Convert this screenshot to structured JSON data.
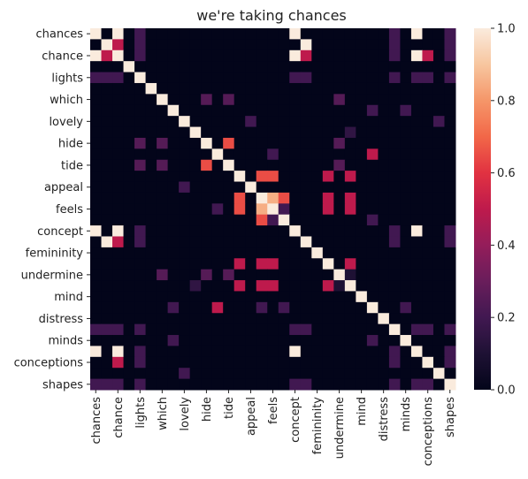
{
  "chart_data": {
    "type": "heatmap",
    "title": "we're taking chances",
    "xlabel": "",
    "ylabel": "",
    "labels": [
      "chances",
      "",
      "chance",
      "",
      "lights",
      "",
      "which",
      "",
      "lovely",
      "",
      "hide",
      "",
      "tide",
      "",
      "appeal",
      "",
      "feels",
      "",
      "concept",
      "",
      "femininity",
      "",
      "undermine",
      "",
      "mind",
      "",
      "distress",
      "",
      "minds",
      "",
      "conceptions",
      "",
      "shapes"
    ],
    "x_ticks": [
      "chances",
      "chance",
      "lights",
      "which",
      "lovely",
      "hide",
      "tide",
      "appeal",
      "feels",
      "concept",
      "femininity",
      "undermine",
      "mind",
      "distress",
      "minds",
      "conceptions",
      "shapes"
    ],
    "y_ticks": [
      "chances",
      "chance",
      "lights",
      "which",
      "lovely",
      "hide",
      "tide",
      "appeal",
      "feels",
      "concept",
      "femininity",
      "undermine",
      "mind",
      "distress",
      "minds",
      "conceptions",
      "shapes"
    ],
    "values": [
      [
        1,
        0,
        1,
        0,
        0.2,
        0,
        0,
        0,
        0,
        0,
        0,
        0,
        0,
        0,
        0,
        0,
        0,
        0,
        1,
        0,
        0,
        0,
        0,
        0,
        0,
        0,
        0,
        0.2,
        0,
        1,
        0,
        0,
        0.2
      ],
      [
        0,
        1,
        0.5,
        0,
        0.2,
        0,
        0,
        0,
        0,
        0,
        0,
        0,
        0,
        0,
        0,
        0,
        0,
        0,
        0,
        1,
        0,
        0,
        0,
        0,
        0,
        0,
        0,
        0.2,
        0,
        0,
        0,
        0,
        0.2
      ],
      [
        1,
        0.5,
        1,
        0,
        0.2,
        0,
        0,
        0,
        0,
        0,
        0,
        0,
        0,
        0,
        0,
        0,
        0,
        0,
        1,
        0.5,
        0,
        0,
        0,
        0,
        0,
        0,
        0,
        0.2,
        0,
        1,
        0.5,
        0,
        0.2
      ],
      [
        0,
        0,
        0,
        1,
        0,
        0,
        0,
        0,
        0,
        0,
        0,
        0,
        0,
        0,
        0,
        0,
        0,
        0,
        0,
        0,
        0,
        0,
        0,
        0,
        0,
        0,
        0,
        0,
        0,
        0,
        0,
        0,
        0
      ],
      [
        0.2,
        0.2,
        0.2,
        0,
        1,
        0,
        0,
        0,
        0,
        0,
        0,
        0,
        0,
        0,
        0,
        0,
        0,
        0,
        0.2,
        0.2,
        0,
        0,
        0,
        0,
        0,
        0,
        0,
        0.2,
        0,
        0.2,
        0.2,
        0,
        0.2
      ],
      [
        0,
        0,
        0,
        0,
        0,
        1,
        0,
        0,
        0,
        0,
        0,
        0,
        0,
        0,
        0,
        0,
        0,
        0,
        0,
        0,
        0,
        0,
        0,
        0,
        0,
        0,
        0,
        0,
        0,
        0,
        0,
        0,
        0
      ],
      [
        0,
        0,
        0,
        0,
        0,
        0,
        1,
        0,
        0,
        0,
        0.25,
        0,
        0.25,
        0,
        0,
        0,
        0,
        0,
        0,
        0,
        0,
        0,
        0.25,
        0,
        0,
        0,
        0,
        0,
        0,
        0,
        0,
        0,
        0
      ],
      [
        0,
        0,
        0,
        0,
        0,
        0,
        0,
        1,
        0,
        0,
        0,
        0,
        0,
        0,
        0,
        0,
        0,
        0,
        0,
        0,
        0,
        0,
        0,
        0,
        0,
        0.2,
        0,
        0,
        0.2,
        0,
        0,
        0,
        0
      ],
      [
        0,
        0,
        0,
        0,
        0,
        0,
        0,
        0,
        1,
        0,
        0,
        0,
        0,
        0,
        0.2,
        0,
        0,
        0,
        0,
        0,
        0,
        0,
        0,
        0,
        0,
        0,
        0,
        0,
        0,
        0,
        0,
        0.2,
        0
      ],
      [
        0,
        0,
        0,
        0,
        0,
        0,
        0,
        0,
        0,
        1,
        0,
        0,
        0,
        0,
        0,
        0,
        0,
        0,
        0,
        0,
        0,
        0,
        0,
        0.15,
        0,
        0,
        0,
        0,
        0,
        0,
        0,
        0,
        0
      ],
      [
        0,
        0,
        0,
        0,
        0.25,
        0,
        0.25,
        0,
        0,
        0,
        1,
        0,
        0.65,
        0,
        0,
        0,
        0,
        0,
        0,
        0,
        0,
        0,
        0.25,
        0,
        0,
        0,
        0,
        0,
        0,
        0,
        0,
        0,
        0
      ],
      [
        0,
        0,
        0,
        0,
        0,
        0,
        0,
        0,
        0,
        0,
        0,
        1,
        0,
        0,
        0,
        0,
        0.2,
        0,
        0,
        0,
        0,
        0,
        0,
        0,
        0,
        0.5,
        0,
        0,
        0,
        0,
        0,
        0,
        0
      ],
      [
        0,
        0,
        0,
        0,
        0.25,
        0,
        0.25,
        0,
        0,
        0,
        0.65,
        0,
        1,
        0,
        0,
        0,
        0,
        0,
        0,
        0,
        0,
        0,
        0.25,
        0,
        0,
        0,
        0,
        0,
        0,
        0,
        0,
        0,
        0
      ],
      [
        0,
        0,
        0,
        0,
        0,
        0,
        0,
        0,
        0,
        0,
        0,
        0,
        0,
        1,
        0,
        0.65,
        0.65,
        0,
        0,
        0,
        0,
        0.5,
        0,
        0.5,
        0,
        0,
        0,
        0,
        0,
        0,
        0,
        0,
        0
      ],
      [
        0,
        0,
        0,
        0,
        0,
        0,
        0,
        0,
        0.2,
        0,
        0,
        0,
        0,
        0,
        1,
        0,
        0,
        0,
        0,
        0,
        0,
        0,
        0,
        0,
        0,
        0,
        0,
        0,
        0,
        0,
        0,
        0,
        0
      ],
      [
        0,
        0,
        0,
        0,
        0,
        0,
        0,
        0,
        0,
        0,
        0,
        0,
        0,
        0.65,
        0,
        1,
        0.85,
        0.65,
        0,
        0,
        0,
        0.5,
        0,
        0.5,
        0,
        0,
        0,
        0,
        0,
        0,
        0,
        0,
        0
      ],
      [
        0,
        0,
        0,
        0,
        0,
        0,
        0,
        0,
        0,
        0,
        0,
        0.2,
        0,
        0.65,
        0,
        0.85,
        1,
        0.2,
        0,
        0,
        0,
        0.5,
        0,
        0.5,
        0,
        0,
        0,
        0,
        0,
        0,
        0,
        0,
        0
      ],
      [
        0,
        0,
        0,
        0,
        0,
        0,
        0,
        0,
        0,
        0,
        0,
        0,
        0,
        0,
        0,
        0.65,
        0.2,
        1,
        0,
        0,
        0,
        0,
        0,
        0,
        0,
        0.2,
        0,
        0,
        0,
        0,
        0,
        0,
        0
      ],
      [
        1,
        0,
        1,
        0,
        0.2,
        0,
        0,
        0,
        0,
        0,
        0,
        0,
        0,
        0,
        0,
        0,
        0,
        0,
        1,
        0,
        0,
        0,
        0,
        0,
        0,
        0,
        0,
        0.2,
        0,
        1,
        0,
        0,
        0.2
      ],
      [
        0,
        1,
        0.5,
        0,
        0.2,
        0,
        0,
        0,
        0,
        0,
        0,
        0,
        0,
        0,
        0,
        0,
        0,
        0,
        0,
        1,
        0,
        0,
        0,
        0,
        0,
        0,
        0,
        0.2,
        0,
        0,
        0,
        0,
        0.2
      ],
      [
        0,
        0,
        0,
        0,
        0,
        0,
        0,
        0,
        0,
        0,
        0,
        0,
        0,
        0,
        0,
        0,
        0,
        0,
        0,
        0,
        1,
        0,
        0,
        0,
        0,
        0,
        0,
        0,
        0,
        0,
        0,
        0,
        0
      ],
      [
        0,
        0,
        0,
        0,
        0,
        0,
        0,
        0,
        0,
        0,
        0,
        0,
        0,
        0.5,
        0,
        0.5,
        0.5,
        0,
        0,
        0,
        0,
        1,
        0,
        0.5,
        0,
        0,
        0,
        0,
        0,
        0,
        0,
        0,
        0
      ],
      [
        0,
        0,
        0,
        0,
        0,
        0,
        0.25,
        0,
        0,
        0,
        0.25,
        0,
        0.25,
        0,
        0,
        0,
        0,
        0,
        0,
        0,
        0,
        0,
        1,
        0.1,
        0,
        0,
        0,
        0,
        0,
        0,
        0,
        0,
        0
      ],
      [
        0,
        0,
        0,
        0,
        0,
        0,
        0,
        0,
        0,
        0.15,
        0,
        0,
        0,
        0.5,
        0,
        0.5,
        0.5,
        0,
        0,
        0,
        0,
        0.5,
        0.1,
        1,
        0,
        0,
        0,
        0,
        0,
        0,
        0,
        0,
        0
      ],
      [
        0,
        0,
        0,
        0,
        0,
        0,
        0,
        0,
        0,
        0,
        0,
        0,
        0,
        0,
        0,
        0,
        0,
        0,
        0,
        0,
        0,
        0,
        0,
        0,
        1,
        0,
        0,
        0,
        0,
        0,
        0,
        0,
        0
      ],
      [
        0,
        0,
        0,
        0,
        0,
        0,
        0,
        0.2,
        0,
        0,
        0,
        0.5,
        0,
        0,
        0,
        0.2,
        0,
        0.2,
        0,
        0,
        0,
        0,
        0,
        0,
        0,
        1,
        0,
        0,
        0.2,
        0,
        0,
        0,
        0
      ],
      [
        0,
        0,
        0,
        0,
        0,
        0,
        0,
        0,
        0,
        0,
        0,
        0,
        0,
        0,
        0,
        0,
        0,
        0,
        0,
        0,
        0,
        0,
        0,
        0,
        0,
        0,
        1,
        0,
        0,
        0,
        0,
        0,
        0
      ],
      [
        0.2,
        0.2,
        0.2,
        0,
        0.2,
        0,
        0,
        0,
        0,
        0,
        0,
        0,
        0,
        0,
        0,
        0,
        0,
        0,
        0.2,
        0.2,
        0,
        0,
        0,
        0,
        0,
        0,
        0,
        1,
        0,
        0.2,
        0.2,
        0,
        0.2
      ],
      [
        0,
        0,
        0,
        0,
        0,
        0,
        0,
        0.2,
        0,
        0,
        0,
        0,
        0,
        0,
        0,
        0,
        0,
        0,
        0,
        0,
        0,
        0,
        0,
        0,
        0,
        0.2,
        0,
        0,
        1,
        0,
        0,
        0,
        0
      ],
      [
        1,
        0,
        1,
        0,
        0.2,
        0,
        0,
        0,
        0,
        0,
        0,
        0,
        0,
        0,
        0,
        0,
        0,
        0,
        1,
        0,
        0,
        0,
        0,
        0,
        0,
        0,
        0,
        0.2,
        0,
        1,
        0,
        0,
        0.2
      ],
      [
        0,
        0,
        0.5,
        0,
        0.2,
        0,
        0,
        0,
        0,
        0,
        0,
        0,
        0,
        0,
        0,
        0,
        0,
        0,
        0,
        0,
        0,
        0,
        0,
        0,
        0,
        0,
        0,
        0.2,
        0,
        0,
        1,
        0,
        0.2
      ],
      [
        0,
        0,
        0,
        0,
        0,
        0,
        0,
        0,
        0.2,
        0,
        0,
        0,
        0,
        0,
        0,
        0,
        0,
        0,
        0,
        0,
        0,
        0,
        0,
        0,
        0,
        0,
        0,
        0,
        0,
        0,
        0,
        1,
        0
      ],
      [
        0.2,
        0.2,
        0.2,
        0,
        0.2,
        0,
        0,
        0,
        0,
        0,
        0,
        0,
        0,
        0,
        0,
        0,
        0,
        0,
        0.2,
        0.2,
        0,
        0,
        0,
        0,
        0,
        0,
        0,
        0.2,
        0,
        0.2,
        0.2,
        0,
        1
      ]
    ],
    "colorbar": {
      "colormap": "rocket",
      "vmin": 0,
      "vmax": 1,
      "ticks": [
        "0.0",
        "0.2",
        "0.4",
        "0.6",
        "0.8",
        "1.0"
      ]
    },
    "grid": false,
    "legend": "colorbar-right"
  }
}
